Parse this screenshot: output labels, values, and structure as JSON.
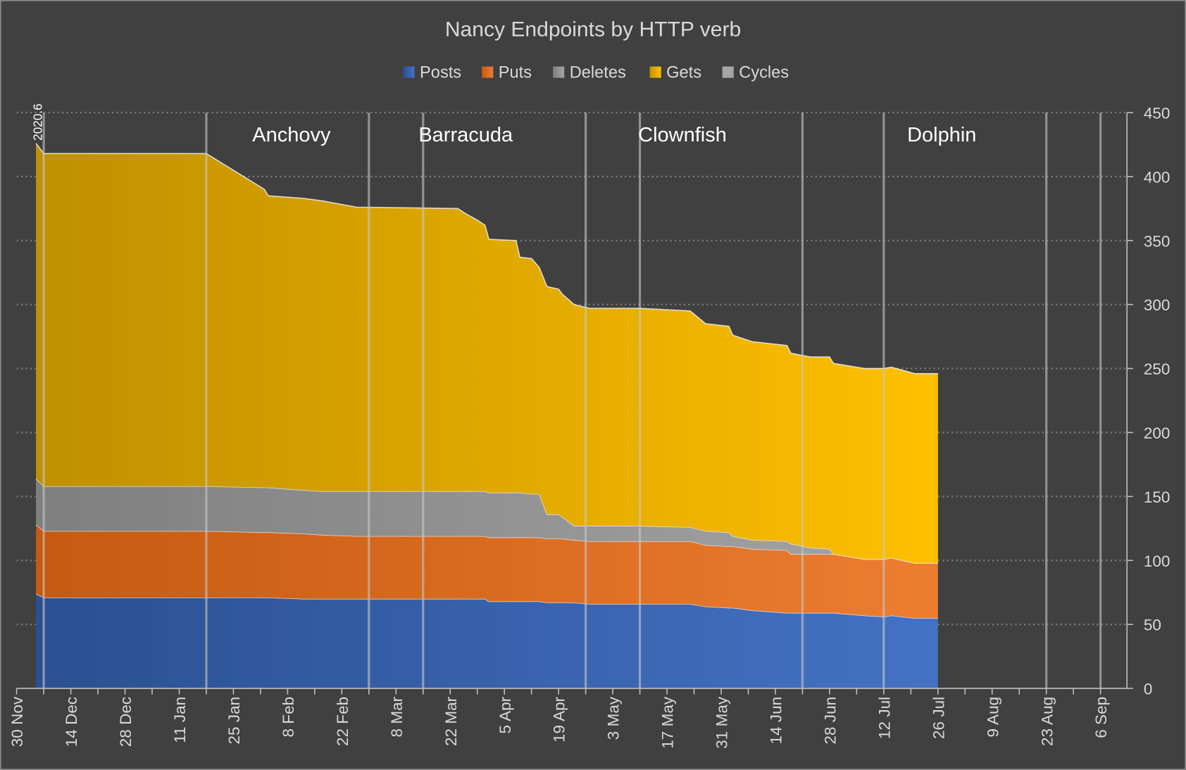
{
  "chart_data": {
    "type": "area",
    "stacked": true,
    "title": "Nancy Endpoints by HTTP verb",
    "legend_position": "top",
    "grid": true,
    "xlim": [
      "2020-11-30",
      "2021-09-06"
    ],
    "ylim": [
      0,
      450
    ],
    "y_axis_side": "right",
    "y_ticks": [
      0,
      50,
      100,
      150,
      200,
      250,
      300,
      350,
      400,
      450
    ],
    "x_tick_labels": [
      "30 Nov",
      "14 Dec",
      "28 Dec",
      "11 Jan",
      "25 Jan",
      "8 Feb",
      "22 Feb",
      "8 Mar",
      "22 Mar",
      "5 Apr",
      "19 Apr",
      "3 May",
      "17 May",
      "31 May",
      "14 Jun",
      "28 Jun",
      "12 Jul",
      "26 Jul",
      "9 Aug",
      "23 Aug",
      "6 Sep"
    ],
    "x": [
      "2020-12-05",
      "2020-12-07",
      "2021-01-18",
      "2021-02-02",
      "2021-02-03",
      "2021-02-12",
      "2021-02-17",
      "2021-02-26",
      "2021-03-01",
      "2021-03-24",
      "2021-03-26",
      "2021-03-29",
      "2021-03-31",
      "2021-04-01",
      "2021-04-08",
      "2021-04-09",
      "2021-04-12",
      "2021-04-14",
      "2021-04-16",
      "2021-04-19",
      "2021-04-20",
      "2021-04-23",
      "2021-04-27",
      "2021-05-10",
      "2021-05-23",
      "2021-05-27",
      "2021-06-02",
      "2021-06-03",
      "2021-06-08",
      "2021-06-17",
      "2021-06-18",
      "2021-06-23",
      "2021-06-28",
      "2021-06-29",
      "2021-07-07",
      "2021-07-12",
      "2021-07-14",
      "2021-07-20",
      "2021-07-26"
    ],
    "series": [
      {
        "name": "Posts",
        "color": "#4472c4",
        "color_dark": "#2b5092",
        "values": [
          74,
          71,
          71,
          71,
          71,
          70,
          70,
          70,
          70,
          70,
          70,
          70,
          70,
          68,
          68,
          68,
          68,
          68,
          67,
          67,
          67,
          67,
          66,
          66,
          66,
          64,
          63,
          63,
          61,
          59,
          59,
          59,
          59,
          59,
          57,
          56,
          57,
          55,
          55
        ]
      },
      {
        "name": "Puts",
        "color": "#ed7d31",
        "color_dark": "#c55a11",
        "values": [
          54,
          52,
          52,
          51,
          51,
          51,
          50,
          49,
          49,
          49,
          49,
          49,
          49,
          50,
          50,
          50,
          50,
          50,
          50,
          50,
          50,
          49,
          49,
          49,
          49,
          48,
          48,
          48,
          48,
          49,
          46,
          46,
          46,
          46,
          44,
          45,
          45,
          43,
          43
        ]
      },
      {
        "name": "Deletes",
        "color": "#a5a5a5",
        "color_dark": "#7f7f7f",
        "values": [
          36,
          35,
          35,
          35,
          35,
          34,
          34,
          35,
          35,
          35,
          35,
          35,
          35,
          35,
          35,
          35,
          34,
          34,
          19,
          19,
          17,
          11,
          12,
          12,
          11,
          11,
          11,
          8,
          7,
          7,
          8,
          5,
          4,
          0,
          0,
          0,
          0,
          0,
          0
        ]
      },
      {
        "name": "Gets",
        "color": "#ffc000",
        "color_dark": "#bf9000",
        "values": [
          262,
          260,
          260,
          233,
          228,
          228,
          227,
          222,
          222,
          221,
          217,
          212,
          208,
          198,
          197,
          184,
          184,
          177,
          178,
          176,
          174,
          173,
          170,
          170,
          169,
          162,
          161,
          157,
          155,
          153,
          149,
          149,
          150,
          149,
          149,
          149,
          149,
          148,
          148
        ]
      },
      {
        "name": "Cycles",
        "color": "#a5a5a5",
        "color_dark": "#a5a5a5",
        "values": [
          0,
          0,
          0,
          0,
          0,
          0,
          0,
          0,
          0,
          0,
          0,
          0,
          0,
          0,
          0,
          0,
          0,
          0,
          0,
          0,
          0,
          0,
          0,
          0,
          0,
          0,
          0,
          0,
          0,
          0,
          0,
          0,
          0,
          0,
          0,
          0,
          0,
          0,
          0
        ]
      }
    ],
    "milestone_lines": [
      "2020-12-07",
      "2021-01-18",
      "2021-03-01",
      "2021-03-15",
      "2021-04-26",
      "2021-05-10",
      "2021-06-21",
      "2021-07-12",
      "2021-08-23",
      "2021-09-06"
    ],
    "annotations": [
      {
        "text": "2020.6",
        "date": "2020-12-05",
        "rotated": true
      },
      {
        "text": "Anchovy",
        "date": "2021-02-09"
      },
      {
        "text": "Barracuda",
        "date": "2021-03-26"
      },
      {
        "text": "Clownfish",
        "date": "2021-05-21"
      },
      {
        "text": "Dolphin",
        "date": "2021-07-27"
      }
    ],
    "colors": {
      "background": "#404040",
      "text": "#d9d9d9",
      "grid": "#7f7f7f",
      "milestone": "#c8c8c8"
    }
  }
}
